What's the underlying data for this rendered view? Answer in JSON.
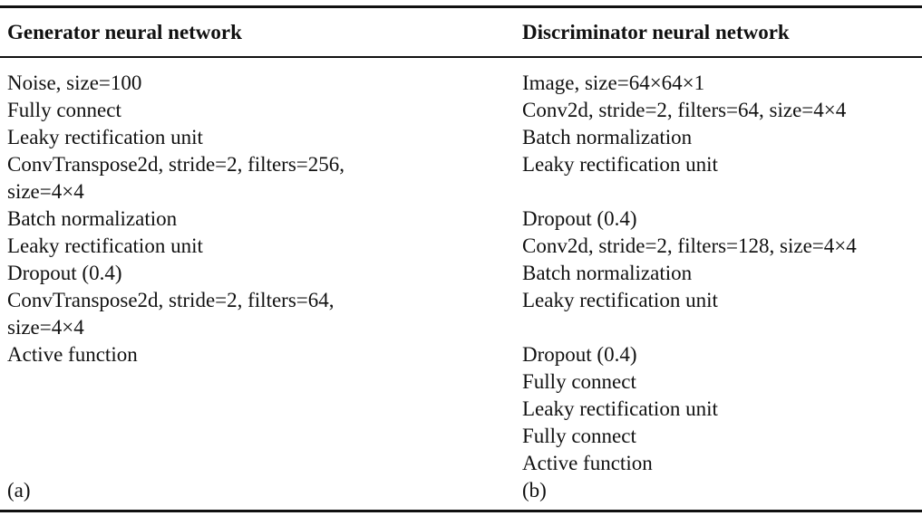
{
  "generator": {
    "heading": "Generator neural network",
    "rows": [
      "Noise, size=100",
      "Fully connect",
      "Leaky rectification unit",
      "ConvTranspose2d, stride=2, filters=256,",
      "size=4×4",
      "Batch normalization",
      "Leaky rectification unit",
      "Dropout (0.4)",
      "ConvTranspose2d, stride=2, filters=64,",
      "size=4×4",
      "Active function"
    ],
    "panel_label": "(a)"
  },
  "discriminator": {
    "heading": "Discriminator neural network",
    "rows": [
      "Image, size=64×64×1",
      "Conv2d, stride=2, filters=64, size=4×4",
      "Batch normalization",
      "Leaky rectification unit",
      "",
      "Dropout (0.4)",
      "Conv2d, stride=2, filters=128, size=4×4",
      "Batch normalization",
      "Leaky rectification unit",
      "",
      "Dropout (0.4)",
      "Fully connect",
      "Leaky rectification unit",
      "Fully connect",
      "Active function"
    ],
    "panel_label": "(b)"
  }
}
